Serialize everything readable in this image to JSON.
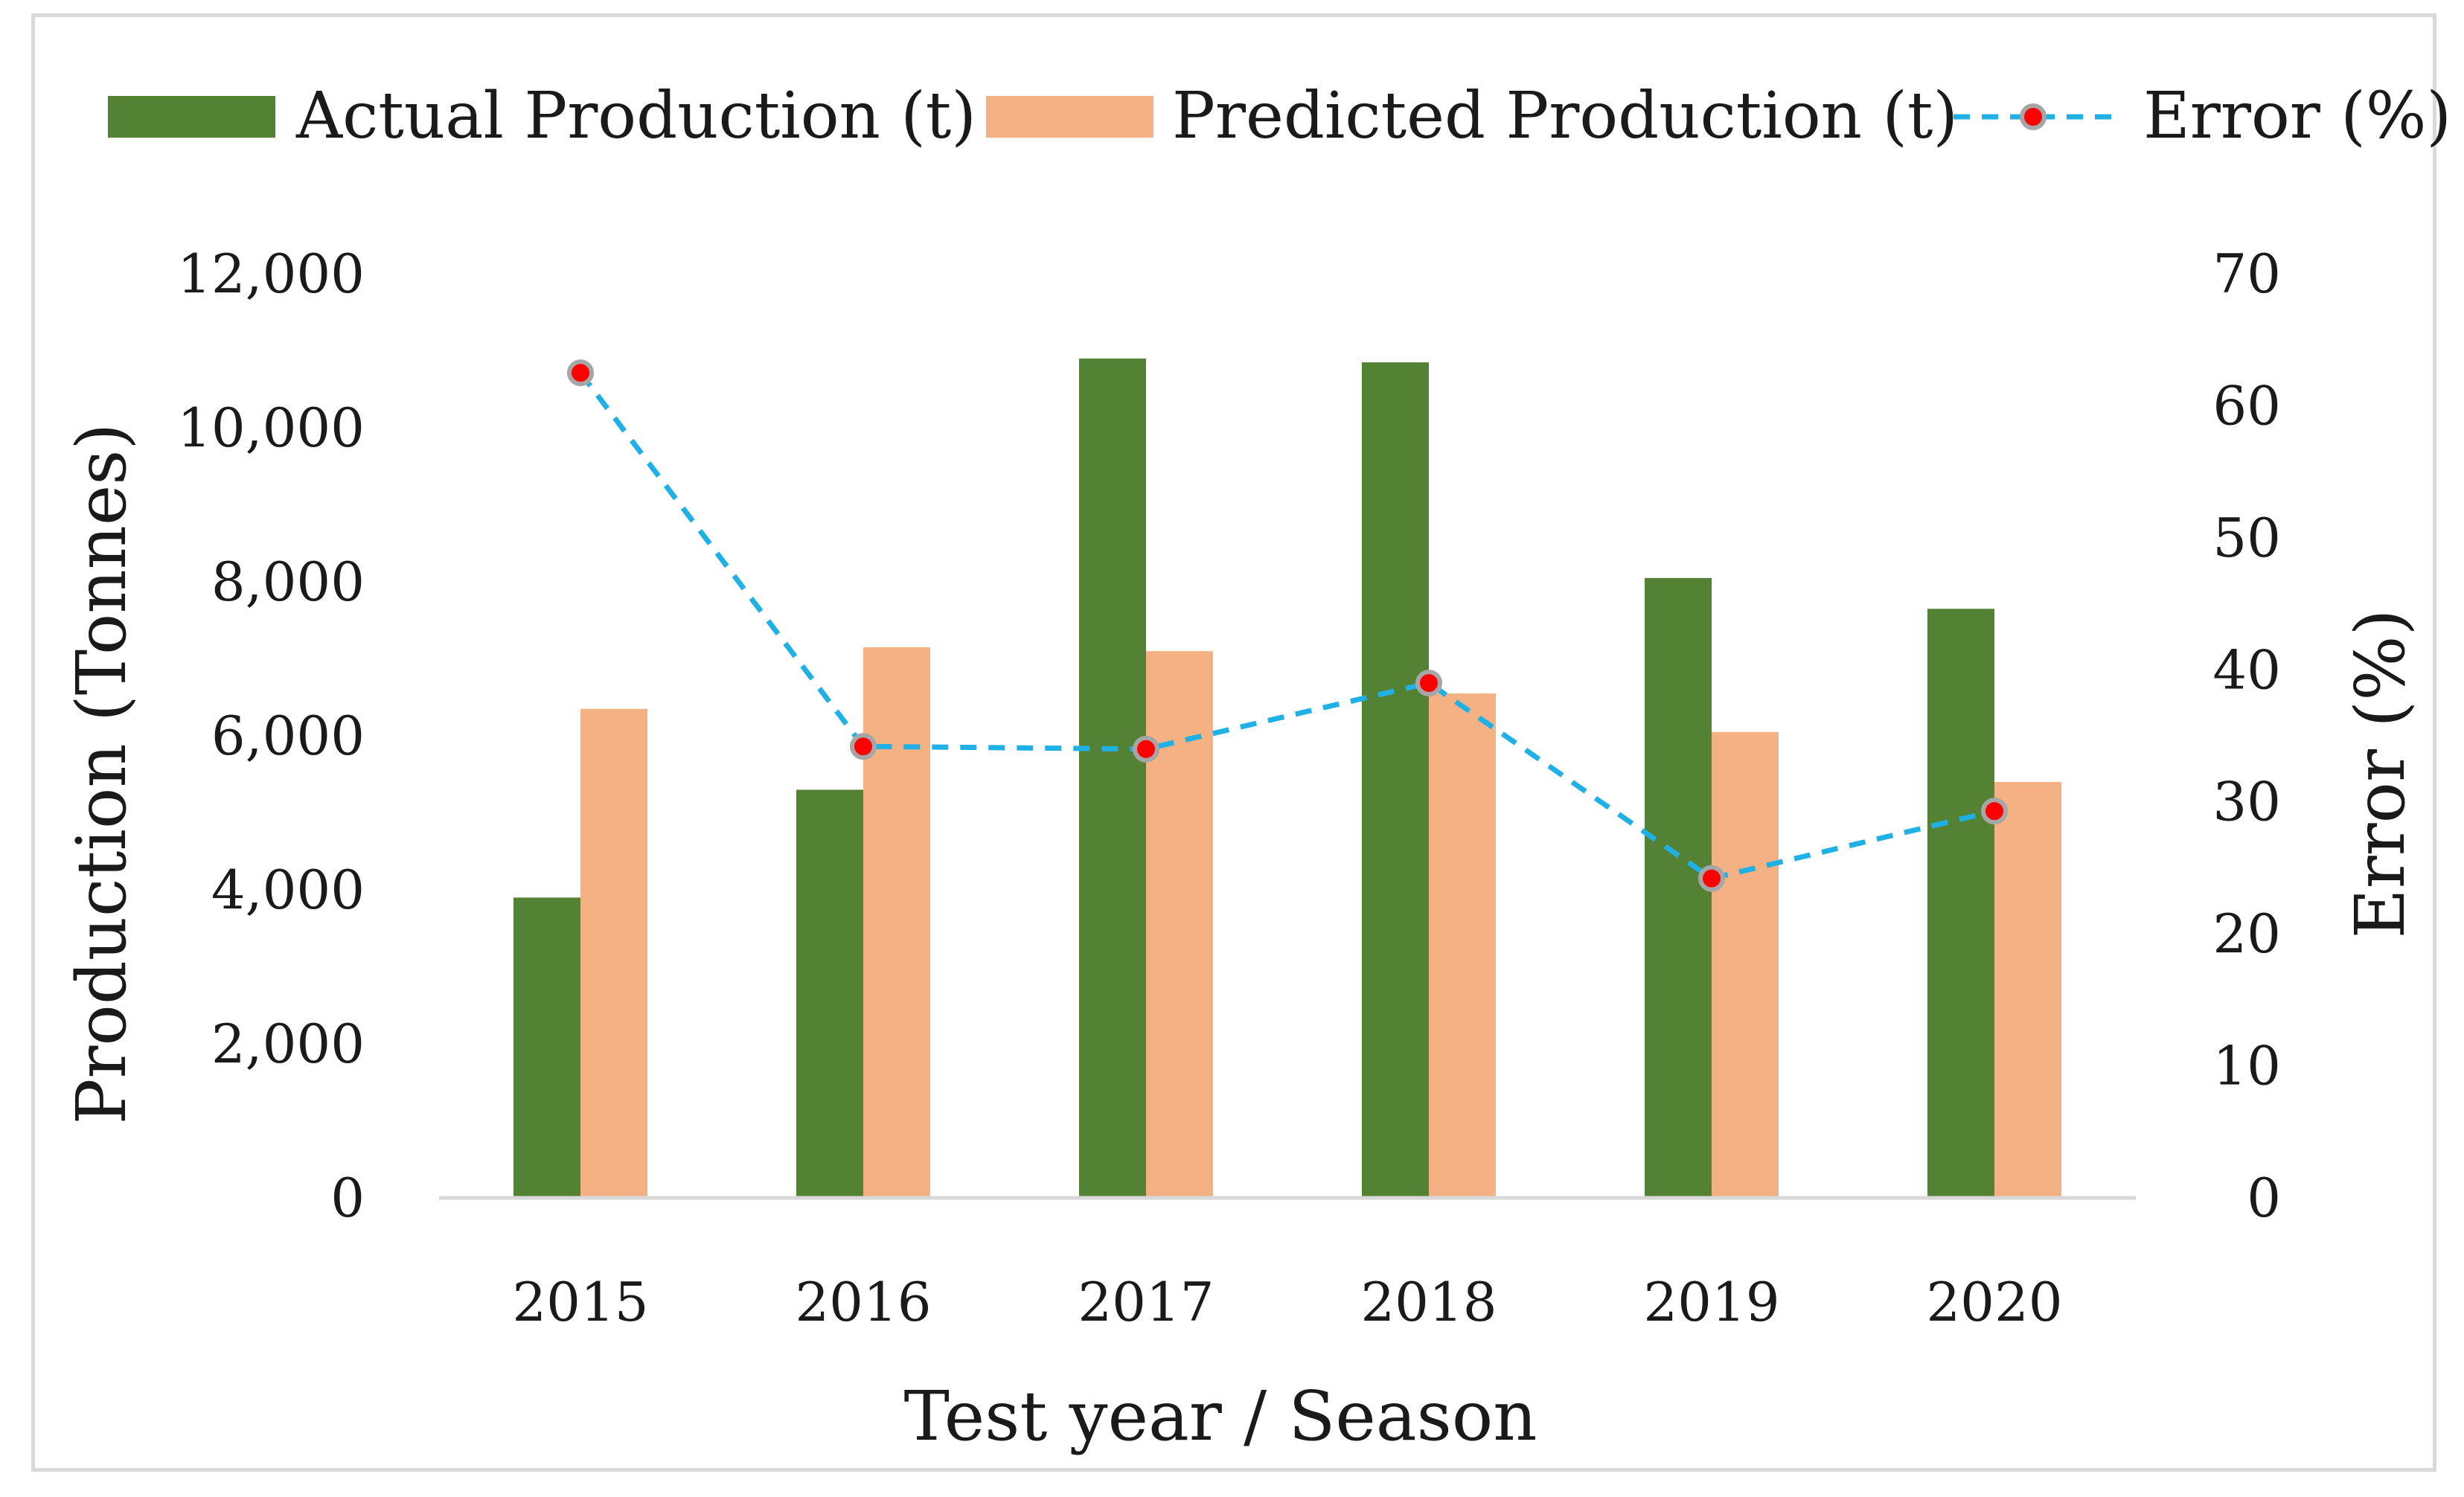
{
  "chart_data": {
    "type": "bar",
    "xlabel": "Test year / Season",
    "ylabel": "Production (Tonnes)",
    "y2label": "Error (%)",
    "categories": [
      "2015",
      "2016",
      "2017",
      "2018",
      "2019",
      "2020"
    ],
    "ylim": [
      0,
      12000
    ],
    "yticks": [
      0,
      2000,
      4000,
      6000,
      8000,
      10000,
      12000
    ],
    "ytick_labels": [
      "0",
      "2,000",
      "4,000",
      "6,000",
      "8,000",
      "10,000",
      "12,000"
    ],
    "y2lim": [
      0,
      70
    ],
    "y2ticks": [
      0,
      10,
      20,
      30,
      40,
      50,
      60,
      70
    ],
    "y2tick_labels": [
      "0",
      "10",
      "20",
      "30",
      "40",
      "50",
      "60",
      "70"
    ],
    "series": [
      {
        "name": "Actual Production (t)",
        "type": "bar",
        "axis": "left",
        "color": "#548235",
        "values": [
          3900,
          5300,
          10900,
          10850,
          8050,
          7650
        ]
      },
      {
        "name": "Predicted Production (t)",
        "type": "bar",
        "axis": "left",
        "color": "#f4b183",
        "values": [
          6350,
          7150,
          7100,
          6550,
          6050,
          5400
        ]
      },
      {
        "name": "Error (%)",
        "type": "line",
        "axis": "right",
        "color": "#1fb0e6",
        "line_style": "dashed",
        "marker_color": "#ff0000",
        "marker_edge": "#a6a6a6",
        "values": [
          62.5,
          34.2,
          34.0,
          39.0,
          24.2,
          29.3
        ]
      }
    ],
    "legend_position": "top",
    "grid": false
  }
}
